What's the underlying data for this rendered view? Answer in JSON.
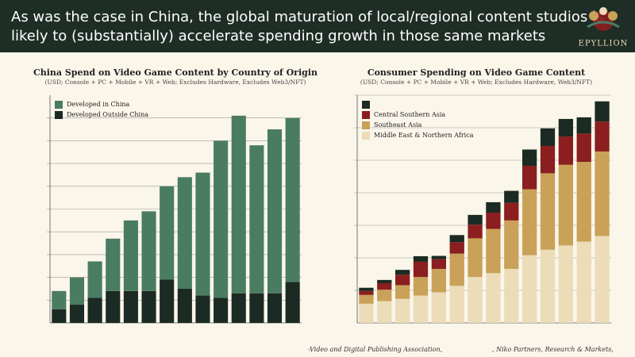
{
  "header": {
    "title_lines": [
      "As was the case in China, the global maturation of local/regional content studios is",
      "likely to (substantially) accelerate spending growth in those same markets"
    ],
    "logo": "EPYLLION"
  },
  "chart_data": [
    {
      "type": "bar",
      "stacked": true,
      "title": "China Spend on Video Game Content by Country of Origin",
      "subtitle": "(USD; Console + PC + Mobile + VR + Web; Excludes Hardware, Excludes Web3/NFT)",
      "categories": [
        null,
        null,
        null,
        null,
        null,
        null,
        null,
        null,
        null,
        null,
        null,
        null,
        null,
        null
      ],
      "series": [
        {
          "name": "Developed Outside China",
          "color": "#1b2a22",
          "values": [
            0.6,
            0.8,
            1.1,
            1.4,
            1.4,
            1.4,
            1.9,
            1.5,
            1.2,
            1.1,
            1.3,
            1.3,
            1.3,
            1.8
          ]
        },
        {
          "name": "Developed in China",
          "color": "#4a7c62",
          "values": [
            0.8,
            1.2,
            1.6,
            2.3,
            3.1,
            3.5,
            4.1,
            4.9,
            5.4,
            6.9,
            7.8,
            6.5,
            7.2,
            7.2
          ]
        }
      ],
      "ylim": [
        0,
        10
      ],
      "yticks": [
        1,
        2,
        3,
        4,
        5,
        6,
        7,
        8,
        9
      ],
      "grid": true,
      "legend": "upper left"
    },
    {
      "type": "bar",
      "stacked": true,
      "title": "Consumer Spending on Video Game Content",
      "subtitle": "(USD; Console + PC + Mobile + VR + Web; Excludes Hardware, Web3/NFT)",
      "categories": [
        null,
        null,
        null,
        null,
        null,
        null,
        null,
        null,
        null,
        null,
        null,
        null,
        null,
        null
      ],
      "series": [
        {
          "name": "Middle East & Northern Africa",
          "color": "#ecdcb8",
          "values": [
            0.59,
            0.67,
            0.74,
            0.84,
            0.94,
            1.14,
            1.41,
            1.53,
            1.66,
            2.08,
            2.25,
            2.38,
            2.5,
            2.67
          ]
        },
        {
          "name": "Southeast Asia",
          "color": "#c9a158",
          "values": [
            0.27,
            0.35,
            0.42,
            0.57,
            0.72,
            0.99,
            1.19,
            1.36,
            1.49,
            2.03,
            2.35,
            2.48,
            2.45,
            2.6
          ]
        },
        {
          "name": "Central Southern Asia",
          "color": "#8b1e1e",
          "values": [
            0.12,
            0.2,
            0.32,
            0.47,
            0.3,
            0.35,
            0.42,
            0.5,
            0.54,
            0.72,
            0.84,
            0.87,
            0.87,
            0.92
          ]
        },
        {
          "color": "#1b2a22",
          "values": [
            0.1,
            0.1,
            0.15,
            0.17,
            0.1,
            0.22,
            0.3,
            0.32,
            0.37,
            0.5,
            0.54,
            0.54,
            0.5,
            0.62
          ]
        }
      ],
      "ylim": [
        0,
        7
      ],
      "yticks": [
        1,
        2,
        3,
        4,
        5,
        6,
        7
      ],
      "grid": true,
      "legend": "upper left"
    }
  ],
  "footer": {
    "sources": [
      "-Video and Digital Publishing Association,",
      ", Niko Partners, Research & Markets,"
    ]
  }
}
